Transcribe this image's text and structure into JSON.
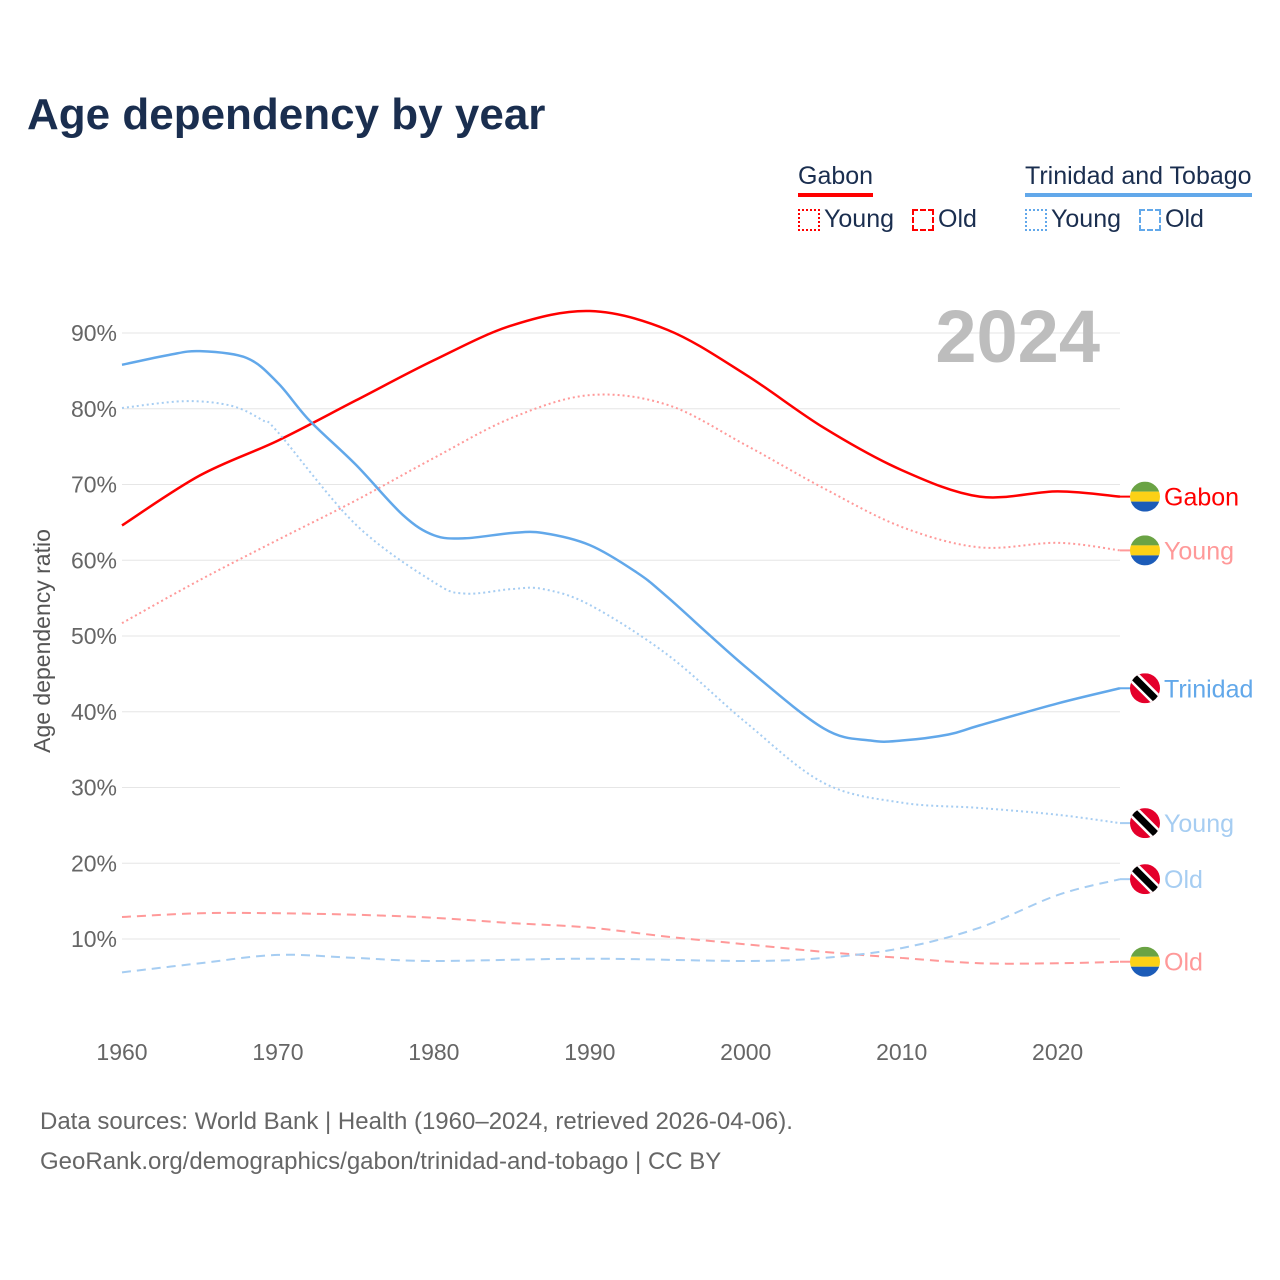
{
  "title": "Age dependency by year",
  "legend": {
    "groups": [
      {
        "country": "Gabon",
        "color": "#ff0000",
        "items": [
          "Young",
          "Old"
        ]
      },
      {
        "country": "Trinidad and Tobago",
        "color": "#62a8ea",
        "items": [
          "Young",
          "Old"
        ]
      }
    ]
  },
  "footer": {
    "line1": "Data sources: World Bank | Health (1960–2024, retrieved 2026-04-06).",
    "line2": "GeoRank.org/demographics/gabon/trinidad-and-tobago | CC BY"
  },
  "chart_data": {
    "type": "line",
    "title": "Age dependency by year",
    "ylabel": "Age dependency ratio",
    "xlabel": "",
    "xlim": [
      1960,
      2024
    ],
    "ylim": [
      0,
      95
    ],
    "x_ticks": [
      1960,
      1970,
      1980,
      1990,
      2000,
      2010,
      2020
    ],
    "y_ticks": [
      10,
      20,
      30,
      40,
      50,
      60,
      70,
      80,
      90
    ],
    "y_tick_labels": [
      "10%",
      "20%",
      "30%",
      "40%",
      "50%",
      "60%",
      "70%",
      "80%",
      "90%"
    ],
    "grid": true,
    "year_annotation": "2024",
    "series": [
      {
        "name": "Gabon",
        "end_label": "Gabon",
        "country": "gabon",
        "color": "#ff0000",
        "style": "solid",
        "x": [
          1960,
          1965,
          1970,
          1975,
          1980,
          1985,
          1990,
          1995,
          2000,
          2005,
          2010,
          2015,
          2020,
          2024
        ],
        "values": [
          64.6,
          71.2,
          75.8,
          81.1,
          86.4,
          91.0,
          92.9,
          90.4,
          84.5,
          77.5,
          71.9,
          68.4,
          69.1,
          68.4
        ]
      },
      {
        "name": "Gabon Young",
        "end_label": "Young",
        "country": "gabon",
        "color": "#ff9999",
        "style": "dotted",
        "x": [
          1960,
          1965,
          1970,
          1975,
          1980,
          1985,
          1990,
          1995,
          2000,
          2005,
          2010,
          2015,
          2020,
          2024
        ],
        "values": [
          51.7,
          57.4,
          62.7,
          67.9,
          73.5,
          78.8,
          81.8,
          80.5,
          75.2,
          69.5,
          64.4,
          61.7,
          62.3,
          61.3
        ]
      },
      {
        "name": "Gabon Old",
        "end_label": "Old",
        "country": "gabon",
        "color": "#ff9999",
        "style": "dashed",
        "x": [
          1960,
          1965,
          1970,
          1975,
          1980,
          1985,
          1990,
          1995,
          2000,
          2005,
          2010,
          2015,
          2020,
          2024
        ],
        "values": [
          12.9,
          13.4,
          13.4,
          13.2,
          12.8,
          12.1,
          11.5,
          10.3,
          9.3,
          8.3,
          7.5,
          6.8,
          6.8,
          7.0
        ]
      },
      {
        "name": "Trinidad and Tobago",
        "end_label": "Trinidad",
        "country": "trinidad",
        "color": "#62a8ea",
        "style": "solid",
        "x": [
          1960,
          1963,
          1965,
          1968,
          1970,
          1972,
          1975,
          1978,
          1980,
          1982,
          1985,
          1987,
          1990,
          1993,
          1995,
          2000,
          2005,
          2008,
          2010,
          2013,
          2015,
          2020,
          2024
        ],
        "values": [
          85.8,
          87.1,
          87.6,
          86.7,
          83.4,
          78.5,
          72.6,
          66.0,
          63.3,
          62.9,
          63.6,
          63.6,
          62.0,
          58.4,
          55.1,
          45.9,
          37.8,
          36.2,
          36.2,
          37.0,
          38.2,
          41.1,
          43.1
        ]
      },
      {
        "name": "Trinidad and Tobago Young",
        "end_label": "Young",
        "country": "trinidad",
        "color": "#a6cdf2",
        "style": "dotted",
        "x": [
          1960,
          1964,
          1967,
          1969,
          1970,
          1975,
          1980,
          1982,
          1985,
          1987,
          1990,
          1995,
          2000,
          2005,
          2010,
          2015,
          2020,
          2024
        ],
        "values": [
          80.1,
          81.0,
          80.4,
          78.5,
          76.9,
          64.7,
          57.1,
          55.6,
          56.2,
          56.2,
          54.1,
          47.5,
          38.6,
          30.6,
          28.0,
          27.3,
          26.4,
          25.3
        ]
      },
      {
        "name": "Trinidad and Tobago Old",
        "end_label": "Old",
        "country": "trinidad",
        "color": "#a6cdf2",
        "style": "dashed",
        "x": [
          1960,
          1965,
          1970,
          1975,
          1980,
          1990,
          2000,
          2005,
          2010,
          2015,
          2020,
          2024
        ],
        "values": [
          5.6,
          6.8,
          7.9,
          7.5,
          7.1,
          7.4,
          7.1,
          7.5,
          8.8,
          11.5,
          15.8,
          17.9
        ]
      }
    ]
  }
}
